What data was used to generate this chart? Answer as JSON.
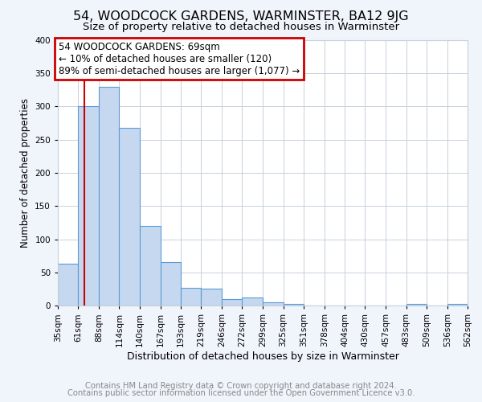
{
  "title": "54, WOODCOCK GARDENS, WARMINSTER, BA12 9JG",
  "subtitle": "Size of property relative to detached houses in Warminster",
  "xlabel": "Distribution of detached houses by size in Warminster",
  "ylabel": "Number of detached properties",
  "footer_line1": "Contains HM Land Registry data © Crown copyright and database right 2024.",
  "footer_line2": "Contains public sector information licensed under the Open Government Licence v3.0.",
  "bin_edges": [
    35,
    61,
    88,
    114,
    140,
    167,
    193,
    219,
    246,
    272,
    299,
    325,
    351,
    378,
    404,
    430,
    457,
    483,
    509,
    536,
    562
  ],
  "bar_heights": [
    63,
    300,
    330,
    268,
    120,
    65,
    27,
    25,
    10,
    12,
    5,
    2,
    0,
    0,
    0,
    0,
    0,
    2,
    0,
    2
  ],
  "bar_color": "#c5d8ef",
  "bar_edge_color": "#5b9bd5",
  "red_line_x": 69,
  "annotation_text": "54 WOODCOCK GARDENS: 69sqm\n← 10% of detached houses are smaller (120)\n89% of semi-detached houses are larger (1,077) →",
  "annotation_box_color": "#ffffff",
  "annotation_box_edge_color": "#cc0000",
  "ylim": [
    0,
    400
  ],
  "yticks": [
    0,
    50,
    100,
    150,
    200,
    250,
    300,
    350,
    400
  ],
  "fig_background": "#f0f4fb",
  "plot_background": "#ffffff",
  "grid_color": "#c8d0dc",
  "title_fontsize": 11.5,
  "subtitle_fontsize": 9.5,
  "xlabel_fontsize": 9,
  "ylabel_fontsize": 8.5,
  "tick_label_fontsize": 7.5,
  "annotation_fontsize": 8.5,
  "footer_fontsize": 7.2
}
